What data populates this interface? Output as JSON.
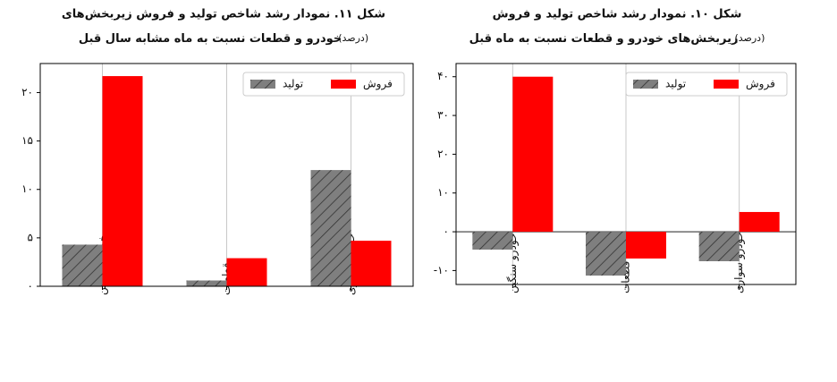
{
  "chart_data": [
    {
      "type": "bar",
      "title": [
        "شکل ۱۱. نمودار رشد شاخص تولید و فروش زیربخش‌های",
        "خودرو و قطعات نسبت به ماه مشابه سال قبل"
      ],
      "unit": "(درصد)",
      "categories": [
        "خودرو سنگین",
        "قطعات",
        "خودرو سواری"
      ],
      "series": [
        {
          "name": "تولید",
          "color": "#7f7f7f",
          "hatch": true,
          "values": [
            4.3,
            0.6,
            12
          ]
        },
        {
          "name": "فروش",
          "color": "#ff0000",
          "hatch": false,
          "values": [
            21.7,
            2.9,
            4.7
          ]
        }
      ],
      "ylim": [
        0,
        23
      ],
      "yticks": [
        {
          "value": 0,
          "label": "۰"
        },
        {
          "value": 5,
          "label": "۵"
        },
        {
          "value": 10,
          "label": "۱۰"
        },
        {
          "value": 15,
          "label": "۱۵"
        },
        {
          "value": 20,
          "label": "۲۰"
        }
      ],
      "grid": "x",
      "legend": "upper right"
    },
    {
      "type": "bar",
      "title": [
        "شکل ۱۰. نمودار رشد شاخص تولید و فروش",
        "زیربخش‌های خودرو و قطعات نسبت به ماه قبل"
      ],
      "unit": "(درصد)",
      "categories": [
        "خودرو سنگین",
        "قطعات",
        "خودرو سواری"
      ],
      "series": [
        {
          "name": "تولید",
          "color": "#7f7f7f",
          "hatch": true,
          "values": [
            -4.6,
            -11.3,
            -7.6
          ]
        },
        {
          "name": "فروش",
          "color": "#ff0000",
          "hatch": false,
          "values": [
            40,
            -6.9,
            5.1
          ]
        }
      ],
      "ylim": [
        -13.6,
        43.4
      ],
      "yticks": [
        {
          "value": -10,
          "label": "-۱۰"
        },
        {
          "value": 0,
          "label": "۰"
        },
        {
          "value": 10,
          "label": "۱۰"
        },
        {
          "value": 20,
          "label": "۲۰"
        },
        {
          "value": 30,
          "label": "۳۰"
        },
        {
          "value": 40,
          "label": "۴۰"
        }
      ],
      "grid": "x",
      "legend": "upper right"
    }
  ]
}
